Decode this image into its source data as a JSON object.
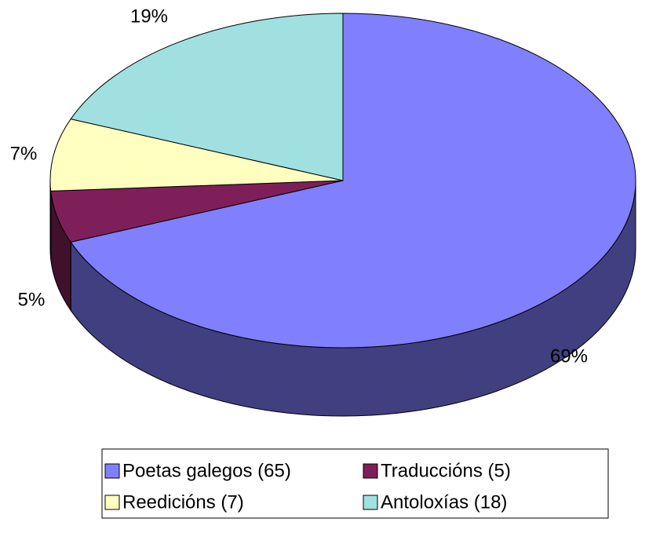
{
  "chart_data": {
    "type": "pie",
    "categories": [
      "Poetas galegos (65)",
      "Traduccións (5)",
      "Reedicións (7)",
      "Antoloxías (18)"
    ],
    "values": [
      69,
      5,
      7,
      19
    ],
    "value_labels": [
      "69%",
      "5%",
      "7%",
      "19%"
    ],
    "colors": [
      "#8080ff",
      "#7f1f5a",
      "#ffffc0",
      "#a0e0e0"
    ]
  }
}
